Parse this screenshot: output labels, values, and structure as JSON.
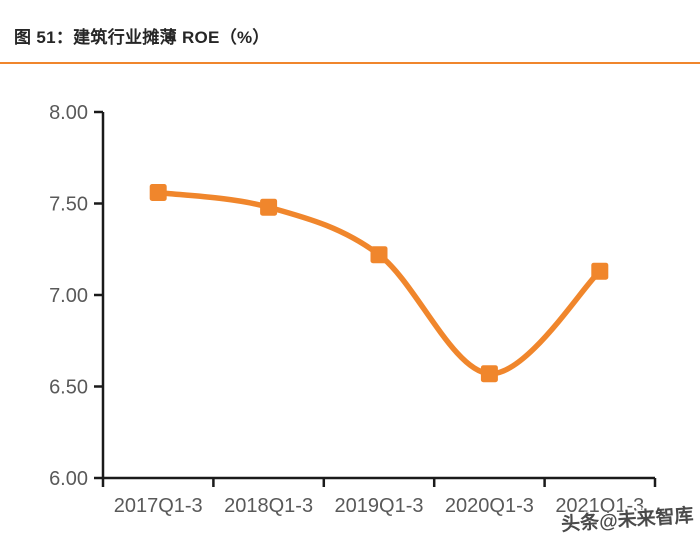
{
  "header": {
    "title": "图 51：建筑行业摊薄 ROE（%）"
  },
  "watermark": {
    "text": "头条@未来智库"
  },
  "colors": {
    "accent_orange": "#F0862C",
    "axis_line": "#1a1a1a",
    "tick_label": "#595959",
    "title_text": "#262626"
  },
  "chart_data": {
    "type": "line",
    "title": "图 51：建筑行业摊薄 ROE（%）",
    "categories": [
      "2017Q1-3",
      "2018Q1-3",
      "2019Q1-3",
      "2020Q1-3",
      "2021Q1-3"
    ],
    "values": [
      7.56,
      7.48,
      7.22,
      6.57,
      7.13
    ],
    "xlabel": "",
    "ylabel": "",
    "ylim": [
      6.0,
      8.0
    ],
    "ytick_step": 0.5,
    "ytick_labels": [
      "8.00",
      "7.50",
      "7.00",
      "6.50",
      "6.00"
    ],
    "grid": false,
    "legend": false,
    "line_smooth": true,
    "marker": "square"
  }
}
